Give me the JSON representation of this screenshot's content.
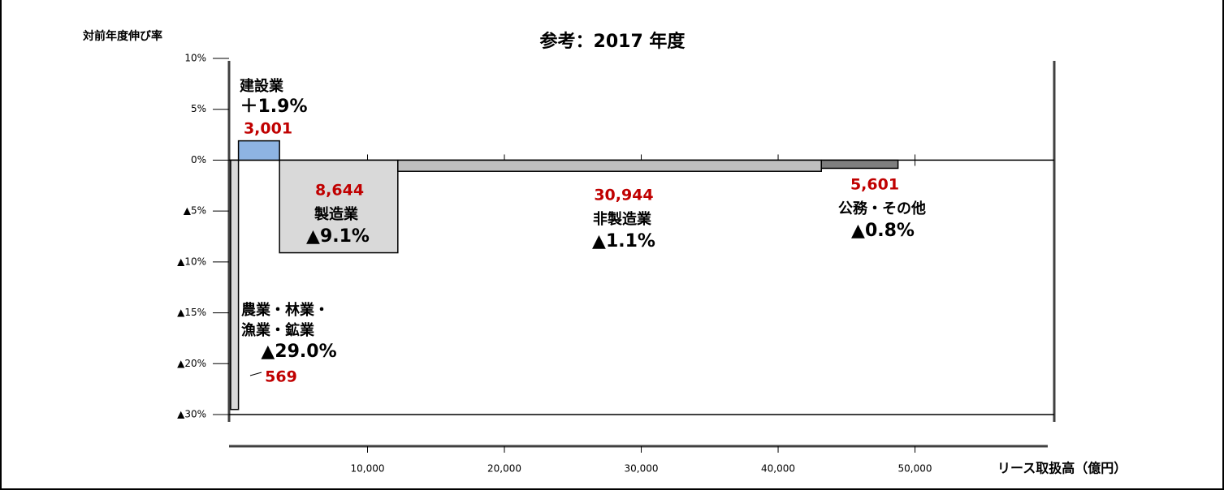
{
  "chart_data": {
    "type": "variable-width-bar",
    "title": "参考：2017 年度",
    "y_label": "対前年度伸び率",
    "x_label": "リース取扱高（億円）",
    "categories": [
      [
        "農業・林業・",
        "漁業・鉱業"
      ],
      [
        "建設業"
      ],
      [
        "製造業"
      ],
      [
        "非製造業"
      ],
      [
        "公務・その他"
      ]
    ],
    "widths": [
      569,
      3001,
      8644,
      30944,
      5601
    ],
    "width_labels": [
      "569",
      "3,001",
      "8,644",
      "30,944",
      "5,601"
    ],
    "values": [
      -29.0,
      1.9,
      -9.1,
      -1.1,
      -0.8
    ],
    "value_labels": [
      "▲29.0%",
      "＋1.9%",
      "▲9.1%",
      "▲1.1%",
      "▲0.8%"
    ],
    "colors": [
      "#d9d9d9",
      "#8eb4e3",
      "#d9d9d9",
      "#bfbfbf",
      "#7f7f7f"
    ],
    "xlim": [
      0,
      59700
    ],
    "xticks": [
      {
        "value": 10000,
        "label": "10,000"
      },
      {
        "value": 20000,
        "label": "20,000"
      },
      {
        "value": 30000,
        "label": "30,000"
      },
      {
        "value": 40000,
        "label": "40,000"
      },
      {
        "value": 50000,
        "label": "50,000"
      }
    ],
    "ylim": [
      10,
      -30
    ],
    "yticks": [
      {
        "value": 10,
        "label": "10%"
      },
      {
        "value": 5,
        "label": "5%"
      },
      {
        "value": 0,
        "label": "0%"
      },
      {
        "value": -5,
        "label": "▲5%"
      },
      {
        "value": -10,
        "label": "▲10%"
      },
      {
        "value": -15,
        "label": "▲15%"
      },
      {
        "value": -20,
        "label": "▲20%"
      },
      {
        "value": -30,
        "label": "▲30%"
      }
    ]
  }
}
